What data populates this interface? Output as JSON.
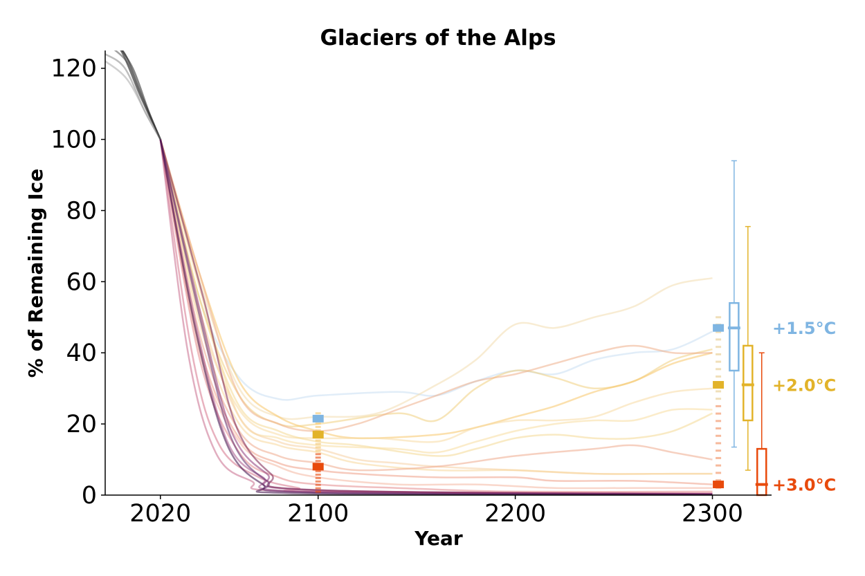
{
  "chart_data": {
    "type": "line",
    "title": "Glaciers of the Alps",
    "xlabel": "Year",
    "ylabel": "% of Remaining Ice",
    "xlim": [
      1992,
      2330
    ],
    "ylim": [
      0,
      125
    ],
    "xticks": [
      2020,
      2100,
      2200,
      2300
    ],
    "yticks": [
      0,
      20,
      40,
      60,
      80,
      100,
      120
    ],
    "xtick_labels": [
      "2020",
      "2100",
      "2200",
      "2300"
    ],
    "ytick_labels": [
      "0",
      "20",
      "40",
      "60",
      "80",
      "100",
      "120"
    ],
    "grid": false,
    "colors": {
      "historical": "#000000",
      "warming_1_5": "#7fb5e2",
      "warming_2_0": "#e2b32a",
      "warming_3_0": "#e84a0c",
      "hot_low": "#d6738a",
      "hot_dark": "#7a1f4f",
      "hot_darkest": "#3b0a45"
    },
    "scenario_labels": [
      {
        "text": "+1.5°C",
        "y": 47,
        "color": "#7fb5e2"
      },
      {
        "text": "+2.0°C",
        "y": 31,
        "color": "#e2b32a"
      },
      {
        "text": "+3.0°C",
        "y": 3,
        "color": "#e84a0c"
      }
    ],
    "series": [
      {
        "color": "#c9def2",
        "points": [
          [
            2020,
            100
          ],
          [
            2040,
            55
          ],
          [
            2060,
            33
          ],
          [
            2080,
            27
          ],
          [
            2100,
            28
          ],
          [
            2140,
            29
          ],
          [
            2160,
            28
          ],
          [
            2180,
            32
          ],
          [
            2200,
            35
          ],
          [
            2220,
            34
          ],
          [
            2240,
            38
          ],
          [
            2260,
            40
          ],
          [
            2280,
            41
          ],
          [
            2300,
            46
          ]
        ]
      },
      {
        "color": "#f2dcae",
        "points": [
          [
            2020,
            100
          ],
          [
            2040,
            60
          ],
          [
            2060,
            30
          ],
          [
            2080,
            22
          ],
          [
            2100,
            22
          ],
          [
            2130,
            23
          ],
          [
            2160,
            31
          ],
          [
            2180,
            38
          ],
          [
            2200,
            48
          ],
          [
            2220,
            47
          ],
          [
            2240,
            50
          ],
          [
            2260,
            53
          ],
          [
            2280,
            59
          ],
          [
            2300,
            61
          ]
        ]
      },
      {
        "color": "#f1d07f",
        "points": [
          [
            2020,
            100
          ],
          [
            2040,
            55
          ],
          [
            2060,
            28
          ],
          [
            2080,
            20
          ],
          [
            2100,
            20
          ],
          [
            2140,
            23
          ],
          [
            2160,
            21
          ],
          [
            2180,
            30
          ],
          [
            2200,
            35
          ],
          [
            2220,
            33
          ],
          [
            2240,
            30
          ],
          [
            2260,
            32
          ],
          [
            2280,
            38
          ],
          [
            2300,
            41
          ]
        ]
      },
      {
        "color": "#f7c66a",
        "points": [
          [
            2020,
            100
          ],
          [
            2040,
            62
          ],
          [
            2060,
            32
          ],
          [
            2080,
            22
          ],
          [
            2100,
            18
          ],
          [
            2120,
            16
          ],
          [
            2160,
            17
          ],
          [
            2180,
            19
          ],
          [
            2200,
            22
          ],
          [
            2220,
            25
          ],
          [
            2240,
            29
          ],
          [
            2260,
            32
          ],
          [
            2280,
            37
          ],
          [
            2300,
            40
          ]
        ]
      },
      {
        "color": "#efaf8a",
        "points": [
          [
            2020,
            100
          ],
          [
            2040,
            62
          ],
          [
            2060,
            28
          ],
          [
            2080,
            20
          ],
          [
            2100,
            18
          ],
          [
            2120,
            20
          ],
          [
            2140,
            24
          ],
          [
            2160,
            28
          ],
          [
            2180,
            32
          ],
          [
            2200,
            34
          ],
          [
            2220,
            37
          ],
          [
            2240,
            40
          ],
          [
            2260,
            42
          ],
          [
            2280,
            40
          ],
          [
            2300,
            40
          ]
        ]
      },
      {
        "color": "#f7dba3",
        "points": [
          [
            2020,
            100
          ],
          [
            2040,
            50
          ],
          [
            2060,
            24
          ],
          [
            2080,
            17
          ],
          [
            2100,
            16
          ],
          [
            2130,
            16
          ],
          [
            2160,
            15
          ],
          [
            2180,
            19
          ],
          [
            2200,
            21
          ],
          [
            2220,
            21
          ],
          [
            2240,
            22
          ],
          [
            2260,
            26
          ],
          [
            2280,
            29
          ],
          [
            2300,
            30
          ]
        ]
      },
      {
        "color": "#f4d994",
        "points": [
          [
            2020,
            100
          ],
          [
            2040,
            55
          ],
          [
            2060,
            25
          ],
          [
            2080,
            18
          ],
          [
            2100,
            15
          ],
          [
            2120,
            14
          ],
          [
            2160,
            11
          ],
          [
            2180,
            13
          ],
          [
            2200,
            16
          ],
          [
            2220,
            17
          ],
          [
            2240,
            16
          ],
          [
            2260,
            16
          ],
          [
            2280,
            18
          ],
          [
            2300,
            23
          ]
        ]
      },
      {
        "color": "#f8dc9e",
        "points": [
          [
            2020,
            100
          ],
          [
            2040,
            58
          ],
          [
            2060,
            22
          ],
          [
            2080,
            16
          ],
          [
            2100,
            14
          ],
          [
            2140,
            13
          ],
          [
            2160,
            12
          ],
          [
            2180,
            15
          ],
          [
            2200,
            18
          ],
          [
            2220,
            20
          ],
          [
            2240,
            21
          ],
          [
            2260,
            21
          ],
          [
            2280,
            24
          ],
          [
            2300,
            24
          ]
        ]
      },
      {
        "color": "#f6cfa3",
        "points": [
          [
            2020,
            100
          ],
          [
            2040,
            52
          ],
          [
            2060,
            22
          ],
          [
            2080,
            15
          ],
          [
            2100,
            13
          ],
          [
            2120,
            10
          ],
          [
            2140,
            9
          ],
          [
            2160,
            8
          ],
          [
            2200,
            7
          ],
          [
            2240,
            6
          ],
          [
            2280,
            6
          ],
          [
            2300,
            6
          ]
        ]
      },
      {
        "color": "#f7d79b",
        "points": [
          [
            2020,
            100
          ],
          [
            2040,
            48
          ],
          [
            2060,
            20
          ],
          [
            2080,
            14
          ],
          [
            2100,
            12
          ],
          [
            2120,
            9
          ],
          [
            2160,
            7
          ],
          [
            2200,
            7
          ],
          [
            2240,
            6
          ],
          [
            2280,
            6
          ],
          [
            2300,
            6
          ]
        ]
      },
      {
        "color": "#efa98c",
        "points": [
          [
            2020,
            100
          ],
          [
            2040,
            45
          ],
          [
            2060,
            18
          ],
          [
            2080,
            11
          ],
          [
            2100,
            9
          ],
          [
            2120,
            7
          ],
          [
            2160,
            8
          ],
          [
            2200,
            11
          ],
          [
            2240,
            13
          ],
          [
            2260,
            14
          ],
          [
            2280,
            12
          ],
          [
            2300,
            10
          ]
        ]
      },
      {
        "color": "#ef9f86",
        "points": [
          [
            2020,
            100
          ],
          [
            2040,
            42
          ],
          [
            2060,
            16
          ],
          [
            2080,
            9
          ],
          [
            2100,
            7
          ],
          [
            2120,
            6
          ],
          [
            2160,
            5
          ],
          [
            2200,
            5
          ],
          [
            2220,
            4
          ],
          [
            2260,
            4
          ],
          [
            2300,
            3
          ]
        ]
      },
      {
        "color": "#f4b6a0",
        "points": [
          [
            2020,
            100
          ],
          [
            2040,
            40
          ],
          [
            2060,
            15
          ],
          [
            2080,
            8
          ],
          [
            2100,
            5
          ],
          [
            2140,
            3
          ],
          [
            2180,
            3
          ],
          [
            2220,
            2
          ],
          [
            2260,
            2
          ],
          [
            2300,
            2
          ]
        ]
      },
      {
        "color": "#e48a8c",
        "points": [
          [
            2020,
            100
          ],
          [
            2040,
            38
          ],
          [
            2060,
            12
          ],
          [
            2080,
            5
          ],
          [
            2100,
            3
          ],
          [
            2140,
            2
          ],
          [
            2200,
            1
          ],
          [
            2300,
            1
          ]
        ]
      },
      {
        "color": "#d6738a",
        "points": [
          [
            2020,
            100
          ],
          [
            2036,
            40
          ],
          [
            2050,
            14
          ],
          [
            2070,
            5
          ],
          [
            2090,
            2
          ],
          [
            2100,
            1
          ],
          [
            2300,
            0.5
          ]
        ]
      },
      {
        "color": "#c96b8d",
        "points": [
          [
            2020,
            100
          ],
          [
            2034,
            40
          ],
          [
            2048,
            12
          ],
          [
            2066,
            4
          ],
          [
            2090,
            1
          ],
          [
            2300,
            0.4
          ]
        ]
      },
      {
        "color": "#a7538a",
        "points": [
          [
            2020,
            100
          ],
          [
            2038,
            48
          ],
          [
            2054,
            15
          ],
          [
            2072,
            5
          ],
          [
            2092,
            1
          ],
          [
            2300,
            0.3
          ]
        ]
      },
      {
        "color": "#8e3b7a",
        "points": [
          [
            2020,
            100
          ],
          [
            2040,
            52
          ],
          [
            2056,
            18
          ],
          [
            2074,
            6
          ],
          [
            2094,
            1.5
          ],
          [
            2300,
            0.3
          ]
        ]
      },
      {
        "color": "#7a1f4f",
        "points": [
          [
            2020,
            100
          ],
          [
            2042,
            55
          ],
          [
            2058,
            20
          ],
          [
            2076,
            6
          ],
          [
            2096,
            1.5
          ],
          [
            2300,
            0.2
          ]
        ]
      },
      {
        "color": "#5f2a6b",
        "points": [
          [
            2020,
            100
          ],
          [
            2040,
            50
          ],
          [
            2056,
            16
          ],
          [
            2074,
            4
          ],
          [
            2094,
            0.8
          ],
          [
            2300,
            0.2
          ]
        ]
      },
      {
        "color": "#3b0a45",
        "points": [
          [
            2020,
            100
          ],
          [
            2038,
            46
          ],
          [
            2054,
            14
          ],
          [
            2072,
            3
          ],
          [
            2090,
            0.5
          ],
          [
            2300,
            0.1
          ]
        ]
      },
      {
        "color": "#000000",
        "points": [
          [
            1992,
            128
          ],
          [
            2000,
            125
          ],
          [
            2010,
            112
          ],
          [
            2020,
            100
          ]
        ]
      },
      {
        "color": "#333333",
        "points": [
          [
            1994,
            128
          ],
          [
            2002,
            124
          ],
          [
            2010,
            113
          ],
          [
            2020,
            100
          ]
        ]
      },
      {
        "color": "#555555",
        "points": [
          [
            1995,
            126
          ],
          [
            2004,
            121
          ],
          [
            2012,
            110
          ],
          [
            2020,
            100
          ]
        ]
      },
      {
        "color": "#888888",
        "points": [
          [
            1992,
            124
          ],
          [
            2002,
            120
          ],
          [
            2012,
            108
          ],
          [
            2020,
            100
          ]
        ]
      },
      {
        "color": "#aaaaaa",
        "points": [
          [
            1992,
            122
          ],
          [
            2003,
            117
          ],
          [
            2013,
            107
          ],
          [
            2020,
            100
          ]
        ]
      },
      {
        "color": "#222222",
        "points": [
          [
            1997,
            128
          ],
          [
            2006,
            120
          ],
          [
            2014,
            108
          ],
          [
            2020,
            100
          ]
        ]
      }
    ],
    "markers_2100": [
      {
        "color": "#7fb5e2",
        "y": 21.5
      },
      {
        "color": "#e2b32a",
        "y": 17
      },
      {
        "color": "#e84a0c",
        "y": 8
      }
    ],
    "markers_2300": [
      {
        "color": "#7fb5e2",
        "y": 47
      },
      {
        "color": "#e2b32a",
        "y": 31
      },
      {
        "color": "#e84a0c",
        "y": 3
      }
    ],
    "boxplots": [
      {
        "color": "#7fb5e2",
        "x": 2311,
        "whisker_low": 13.5,
        "q1": 35,
        "median": 47,
        "q3": 54,
        "whisker_high": 94
      },
      {
        "color": "#e2b32a",
        "x": 2318,
        "whisker_low": 7,
        "q1": 21,
        "median": 31,
        "q3": 42,
        "whisker_high": 75.5
      },
      {
        "color": "#e84a0c",
        "x": 2325,
        "whisker_low": 0,
        "q1": 0,
        "median": 3,
        "q3": 13,
        "whisker_high": 40
      }
    ]
  }
}
